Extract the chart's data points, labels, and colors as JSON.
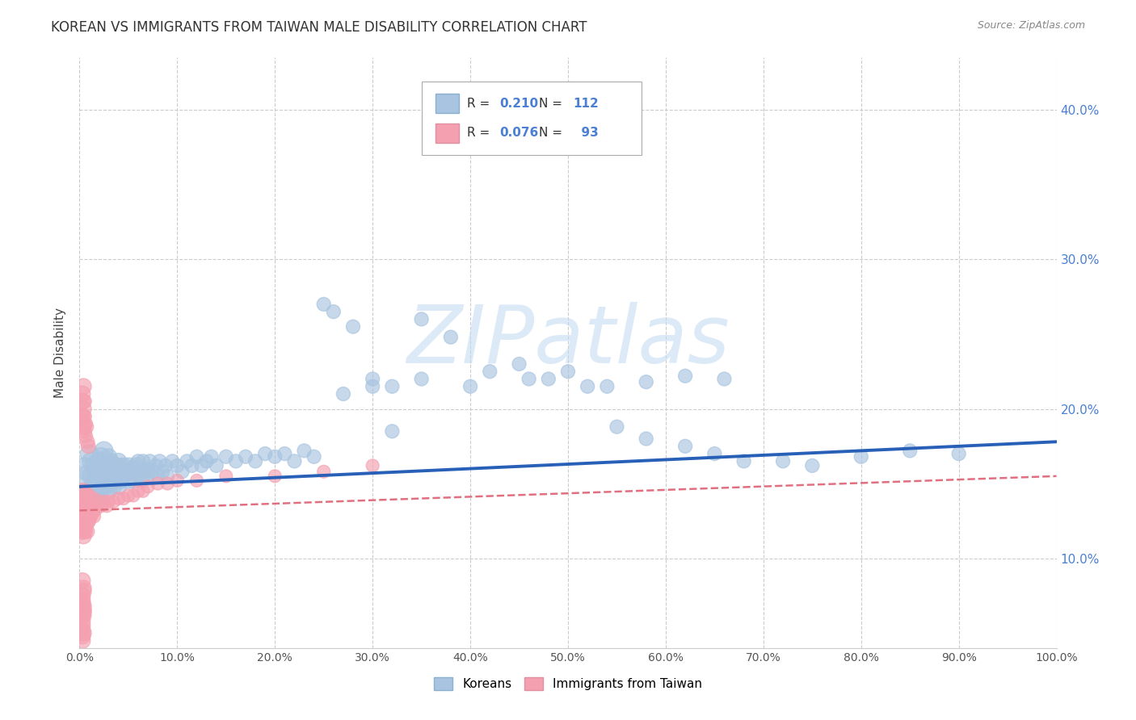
{
  "title": "KOREAN VS IMMIGRANTS FROM TAIWAN MALE DISABILITY CORRELATION CHART",
  "source_text": "Source: ZipAtlas.com",
  "ylabel": "Male Disability",
  "watermark": "ZIPatlas",
  "legend_r1": "0.210",
  "legend_n1": "112",
  "legend_r2": "0.076",
  "legend_n2": "93",
  "legend_label1": "Koreans",
  "legend_label2": "Immigrants from Taiwan",
  "xlim": [
    0,
    1.0
  ],
  "ylim": [
    0.04,
    0.435
  ],
  "xticks": [
    0.0,
    0.1,
    0.2,
    0.3,
    0.4,
    0.5,
    0.6,
    0.7,
    0.8,
    0.9,
    1.0
  ],
  "yticks": [
    0.1,
    0.2,
    0.3,
    0.4
  ],
  "ytick_labels": [
    "10.0%",
    "20.0%",
    "30.0%",
    "40.0%"
  ],
  "xtick_labels": [
    "0.0%",
    "10.0%",
    "20.0%",
    "30.0%",
    "40.0%",
    "50.0%",
    "60.0%",
    "70.0%",
    "80.0%",
    "90.0%",
    "100.0%"
  ],
  "korean_color": "#a8c4e0",
  "taiwan_color": "#f4a0b0",
  "korean_line_color": "#2860b8",
  "taiwan_line_color": "#e07080",
  "background_color": "#ffffff",
  "grid_color": "#cccccc",
  "title_color": "#333333",
  "watermark_color": "#c0d8f0",
  "korean_line_start_y": 0.148,
  "korean_line_end_y": 0.178,
  "taiwan_line_start_y": 0.132,
  "taiwan_line_end_y": 0.155,
  "korean_scatter_x": [
    0.005,
    0.008,
    0.01,
    0.01,
    0.012,
    0.012,
    0.015,
    0.015,
    0.015,
    0.018,
    0.018,
    0.02,
    0.02,
    0.02,
    0.022,
    0.022,
    0.025,
    0.025,
    0.025,
    0.028,
    0.028,
    0.03,
    0.03,
    0.03,
    0.032,
    0.032,
    0.035,
    0.035,
    0.035,
    0.038,
    0.04,
    0.04,
    0.04,
    0.042,
    0.042,
    0.045,
    0.045,
    0.048,
    0.05,
    0.05,
    0.052,
    0.055,
    0.055,
    0.058,
    0.06,
    0.06,
    0.062,
    0.065,
    0.065,
    0.068,
    0.07,
    0.07,
    0.072,
    0.075,
    0.078,
    0.08,
    0.082,
    0.085,
    0.088,
    0.09,
    0.095,
    0.1,
    0.105,
    0.11,
    0.115,
    0.12,
    0.125,
    0.13,
    0.135,
    0.14,
    0.15,
    0.16,
    0.17,
    0.18,
    0.19,
    0.2,
    0.21,
    0.22,
    0.23,
    0.24,
    0.25,
    0.26,
    0.28,
    0.3,
    0.32,
    0.35,
    0.38,
    0.42,
    0.45,
    0.48,
    0.52,
    0.55,
    0.58,
    0.62,
    0.65,
    0.68,
    0.72,
    0.75,
    0.8,
    0.85,
    0.9,
    0.32,
    0.27,
    0.3,
    0.35,
    0.4,
    0.46,
    0.5,
    0.54,
    0.58,
    0.62,
    0.66
  ],
  "korean_scatter_y": [
    0.16,
    0.155,
    0.17,
    0.145,
    0.165,
    0.155,
    0.15,
    0.162,
    0.148,
    0.158,
    0.145,
    0.165,
    0.155,
    0.142,
    0.168,
    0.152,
    0.16,
    0.148,
    0.172,
    0.155,
    0.162,
    0.15,
    0.168,
    0.145,
    0.158,
    0.165,
    0.152,
    0.16,
    0.148,
    0.162,
    0.155,
    0.165,
    0.148,
    0.16,
    0.152,
    0.162,
    0.155,
    0.158,
    0.162,
    0.152,
    0.158,
    0.16,
    0.152,
    0.162,
    0.155,
    0.165,
    0.158,
    0.152,
    0.165,
    0.158,
    0.16,
    0.155,
    0.165,
    0.158,
    0.162,
    0.155,
    0.165,
    0.158,
    0.162,
    0.155,
    0.165,
    0.162,
    0.158,
    0.165,
    0.162,
    0.168,
    0.162,
    0.165,
    0.168,
    0.162,
    0.168,
    0.165,
    0.168,
    0.165,
    0.17,
    0.168,
    0.17,
    0.165,
    0.172,
    0.168,
    0.27,
    0.265,
    0.255,
    0.22,
    0.215,
    0.26,
    0.248,
    0.225,
    0.23,
    0.22,
    0.215,
    0.188,
    0.18,
    0.175,
    0.17,
    0.165,
    0.165,
    0.162,
    0.168,
    0.172,
    0.17,
    0.185,
    0.21,
    0.215,
    0.22,
    0.215,
    0.22,
    0.225,
    0.215,
    0.218,
    0.222,
    0.22
  ],
  "taiwan_scatter_x": [
    0.002,
    0.002,
    0.002,
    0.003,
    0.003,
    0.003,
    0.003,
    0.003,
    0.004,
    0.004,
    0.004,
    0.004,
    0.005,
    0.005,
    0.005,
    0.005,
    0.005,
    0.006,
    0.006,
    0.006,
    0.006,
    0.007,
    0.007,
    0.007,
    0.008,
    0.008,
    0.008,
    0.009,
    0.009,
    0.01,
    0.01,
    0.01,
    0.012,
    0.012,
    0.013,
    0.015,
    0.015,
    0.016,
    0.018,
    0.02,
    0.022,
    0.025,
    0.028,
    0.03,
    0.035,
    0.04,
    0.045,
    0.05,
    0.055,
    0.06,
    0.065,
    0.07,
    0.08,
    0.09,
    0.1,
    0.12,
    0.15,
    0.2,
    0.25,
    0.3,
    0.002,
    0.003,
    0.003,
    0.004,
    0.004,
    0.005,
    0.005,
    0.006,
    0.006,
    0.007,
    0.008,
    0.009,
    0.003,
    0.004,
    0.005,
    0.003,
    0.004,
    0.003,
    0.004,
    0.003,
    0.003,
    0.004,
    0.003,
    0.003,
    0.004,
    0.003,
    0.004,
    0.003,
    0.004,
    0.003,
    0.003,
    0.003,
    0.004
  ],
  "taiwan_scatter_y": [
    0.14,
    0.132,
    0.128,
    0.135,
    0.125,
    0.145,
    0.118,
    0.138,
    0.13,
    0.122,
    0.142,
    0.115,
    0.128,
    0.135,
    0.118,
    0.145,
    0.125,
    0.132,
    0.118,
    0.142,
    0.128,
    0.135,
    0.122,
    0.142,
    0.13,
    0.118,
    0.142,
    0.125,
    0.138,
    0.132,
    0.125,
    0.142,
    0.128,
    0.135,
    0.13,
    0.128,
    0.14,
    0.132,
    0.135,
    0.138,
    0.135,
    0.138,
    0.135,
    0.138,
    0.138,
    0.14,
    0.14,
    0.142,
    0.142,
    0.145,
    0.145,
    0.148,
    0.15,
    0.15,
    0.152,
    0.152,
    0.155,
    0.155,
    0.158,
    0.162,
    0.195,
    0.205,
    0.195,
    0.2,
    0.188,
    0.195,
    0.185,
    0.19,
    0.182,
    0.188,
    0.178,
    0.175,
    0.21,
    0.215,
    0.205,
    0.085,
    0.078,
    0.075,
    0.08,
    0.068,
    0.072,
    0.065,
    0.07,
    0.062,
    0.068,
    0.058,
    0.065,
    0.055,
    0.062,
    0.052,
    0.048,
    0.045,
    0.05
  ]
}
